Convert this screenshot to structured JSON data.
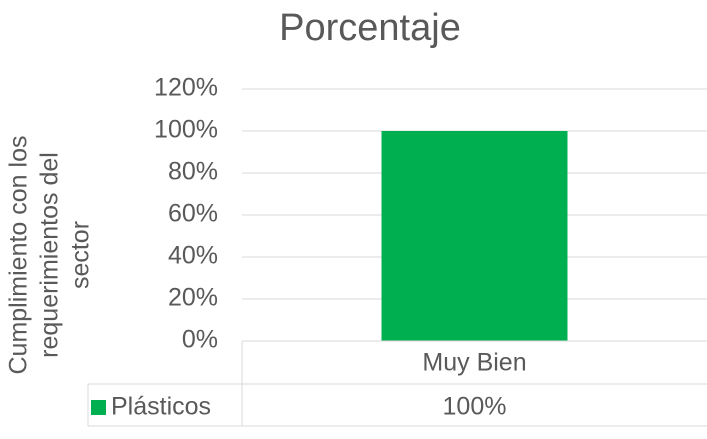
{
  "chart_data": {
    "type": "bar",
    "title": "Porcentaje",
    "ylabel": "Cumplimiento con los requerimientos del sector",
    "categories": [
      "Muy Bien"
    ],
    "series": [
      {
        "name": "Plásticos",
        "color": "#00b050",
        "values": [
          100
        ],
        "value_labels": [
          "100%"
        ]
      }
    ],
    "ylim": [
      0,
      120
    ],
    "yticks": [
      {
        "value": 0,
        "label": "0%"
      },
      {
        "value": 20,
        "label": "20%"
      },
      {
        "value": 40,
        "label": "40%"
      },
      {
        "value": 60,
        "label": "60%"
      },
      {
        "value": 80,
        "label": "80%"
      },
      {
        "value": 100,
        "label": "100%"
      },
      {
        "value": 120,
        "label": "120%"
      }
    ],
    "grid": true
  }
}
